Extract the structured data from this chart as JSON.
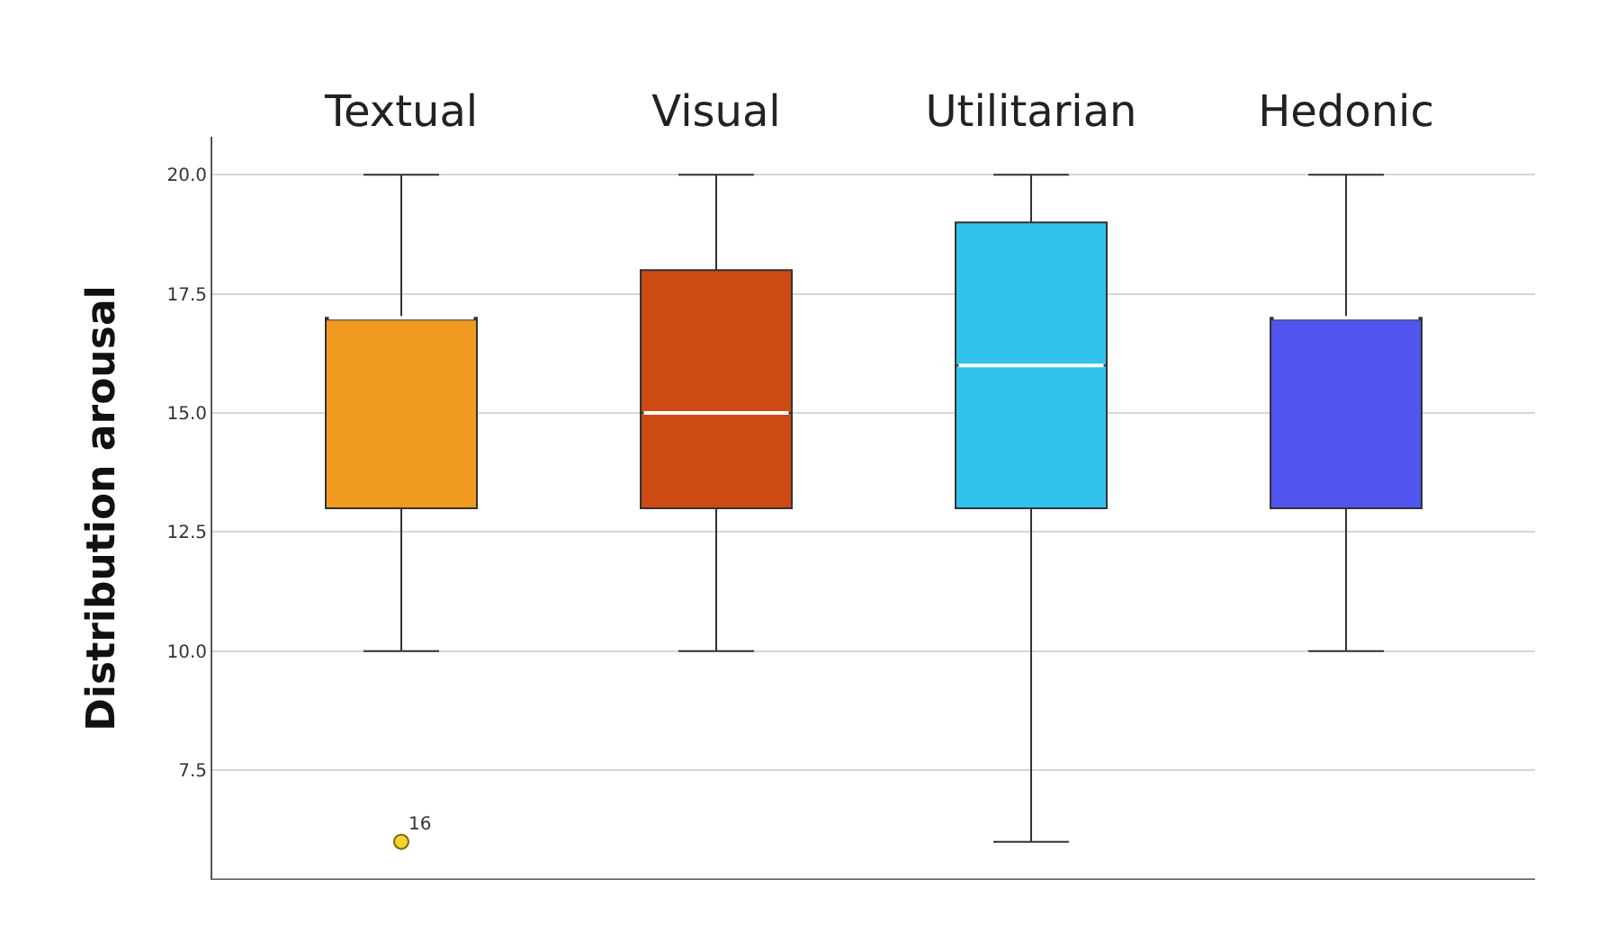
{
  "chart_data": {
    "type": "box",
    "ylabel": "Distribution arousal",
    "categories": [
      "Textual",
      "Visual",
      "Utilitarian",
      "Hedonic"
    ],
    "colors": [
      "#f09a20",
      "#cc4a14",
      "#33c2ec",
      "#4f55ee"
    ],
    "boxes": [
      {
        "low": 10,
        "q1": 13,
        "median": 17,
        "q3": 17,
        "high": 20,
        "outliers": [
          6
        ]
      },
      {
        "low": 10,
        "q1": 13,
        "median": 15,
        "q3": 18,
        "high": 20
      },
      {
        "low": 6,
        "q1": 13,
        "median": 16,
        "q3": 19,
        "high": 20
      },
      {
        "low": 10,
        "q1": 13,
        "median": 17,
        "q3": 17,
        "high": 20
      }
    ],
    "annotations": [
      "16"
    ],
    "ylim": [
      5.2,
      20.8
    ],
    "yticks": [
      {
        "value": 7.5,
        "label": "7.5"
      },
      {
        "value": 10,
        "label": "10.0"
      },
      {
        "value": 12.5,
        "label": "12.5"
      },
      {
        "value": 15,
        "label": "15.0"
      },
      {
        "value": 17.5,
        "label": "17.5"
      },
      {
        "value": 20,
        "label": "20.0"
      }
    ],
    "grid": "y"
  }
}
